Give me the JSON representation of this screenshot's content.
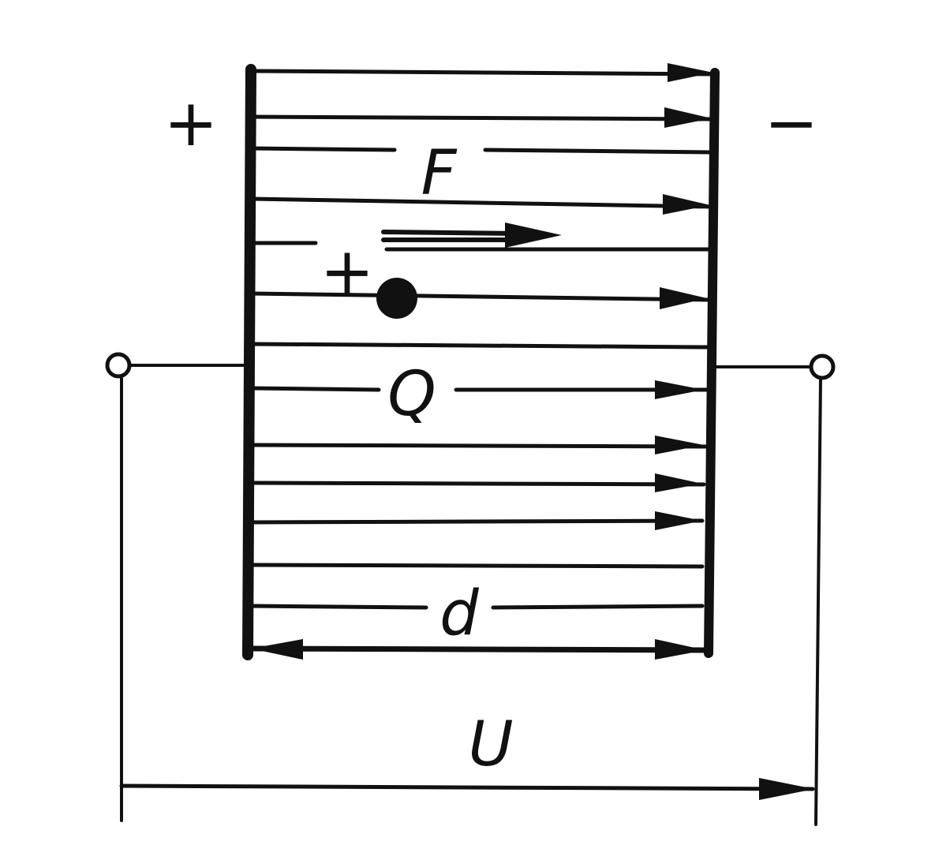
{
  "diagram": {
    "labels": {
      "plate_positive_sign": "+",
      "plate_negative_sign": "−",
      "force": "F",
      "charge_sign": "+",
      "charge": "Q",
      "distance": "d",
      "voltage": "U"
    },
    "colors": {
      "ink": "#111111",
      "background": "#ffffff"
    }
  }
}
